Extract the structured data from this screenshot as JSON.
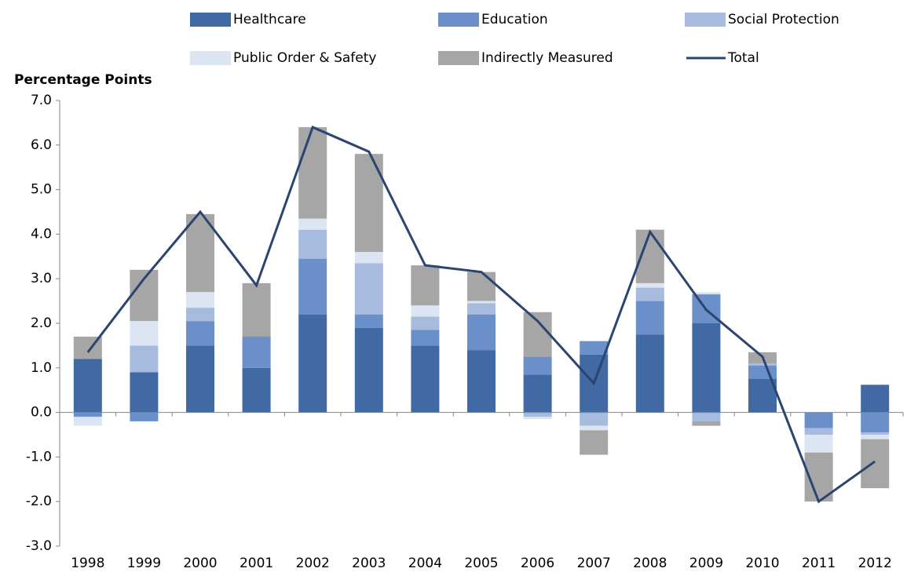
{
  "chart_data": {
    "type": "bar",
    "stacked": true,
    "y_label": "Percentage Points",
    "categories": [
      "1998",
      "1999",
      "2000",
      "2001",
      "2002",
      "2003",
      "2004",
      "2005",
      "2006",
      "2007",
      "2008",
      "2009",
      "2010",
      "2011",
      "2012"
    ],
    "series": [
      {
        "name": "Healthcare",
        "color": "#4169a4",
        "values": [
          1.2,
          0.9,
          1.5,
          1.0,
          2.2,
          1.9,
          1.5,
          1.4,
          0.85,
          1.3,
          1.75,
          2.0,
          0.75,
          0,
          0.62
        ]
      },
      {
        "name": "Education",
        "color": "#6b8fc9",
        "values": [
          -0.1,
          -0.2,
          0.55,
          0.7,
          1.25,
          0.3,
          0.35,
          0.8,
          0.4,
          0.3,
          0.75,
          0.65,
          0.3,
          -0.35,
          -0.45
        ]
      },
      {
        "name": "Social Protection",
        "color": "#a6bbdd",
        "values": [
          0,
          0.6,
          0.3,
          0,
          0.65,
          1.15,
          0.3,
          0.25,
          -0.1,
          -0.3,
          0.3,
          -0.2,
          0.05,
          -0.15,
          -0.05
        ]
      },
      {
        "name": "Public Order & Safety",
        "color": "#dce6f2",
        "values": [
          -0.2,
          0.55,
          0.35,
          0,
          0.25,
          0.25,
          0.25,
          0.05,
          -0.05,
          -0.1,
          0.1,
          0.05,
          0,
          -0.4,
          -0.1
        ]
      },
      {
        "name": "Indirectly Measured",
        "color": "#a6a6a6",
        "values": [
          0.5,
          1.15,
          1.75,
          1.2,
          2.05,
          2.2,
          0.9,
          0.65,
          1.0,
          -0.55,
          1.2,
          -0.1,
          0.25,
          -1.1,
          -1.1
        ]
      },
      {
        "name": "Total",
        "type": "line",
        "color": "#2b4470",
        "values": [
          1.35,
          3.0,
          4.5,
          2.85,
          6.4,
          5.85,
          3.3,
          3.15,
          2.05,
          0.65,
          4.05,
          2.3,
          1.25,
          -2.0,
          -1.1
        ]
      }
    ],
    "ylim": [
      -3,
      7
    ],
    "yticks": [
      {
        "value": -3,
        "label": "-3.0"
      },
      {
        "value": -2,
        "label": "-2.0"
      },
      {
        "value": -1,
        "label": "-1.0"
      },
      {
        "value": 0,
        "label": "0.0"
      },
      {
        "value": 1,
        "label": "1.0"
      },
      {
        "value": 2,
        "label": "2.0"
      },
      {
        "value": 3,
        "label": "3.0"
      },
      {
        "value": 4,
        "label": "4.0"
      },
      {
        "value": 5,
        "label": "5.0"
      },
      {
        "value": 6,
        "label": "6.0"
      },
      {
        "value": 7,
        "label": "7.0"
      }
    ],
    "grid": false,
    "legend": "top"
  }
}
